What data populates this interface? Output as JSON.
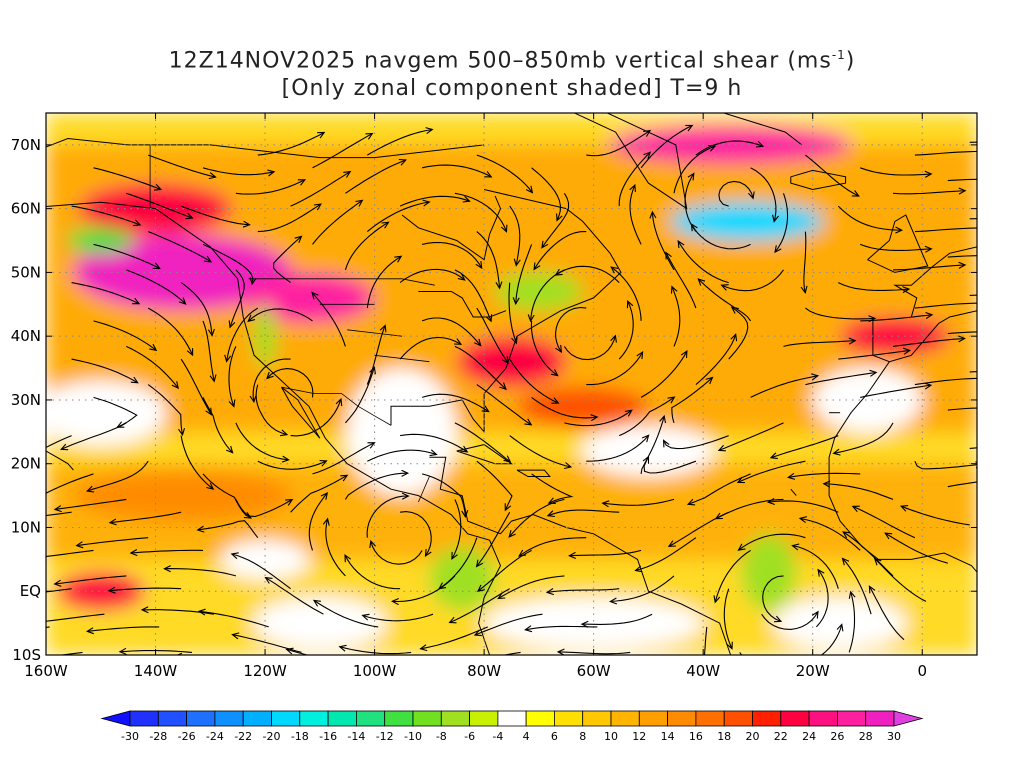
{
  "title": {
    "line1": "12Z14NOV2025 navgem 500–850mb vertical shear (ms",
    "line1_sup": "-1",
    "line1_end": ")",
    "line2": "[Only zonal component shaded] T=9 h"
  },
  "map": {
    "lon_range": [
      -160,
      10
    ],
    "lat_range": [
      -10,
      75
    ],
    "lat_ticks": [
      {
        "value": 70,
        "label": "70N"
      },
      {
        "value": 60,
        "label": "60N"
      },
      {
        "value": 50,
        "label": "50N"
      },
      {
        "value": 40,
        "label": "40N"
      },
      {
        "value": 30,
        "label": "30N"
      },
      {
        "value": 20,
        "label": "20N"
      },
      {
        "value": 10,
        "label": "10N"
      },
      {
        "value": 0,
        "label": "EQ"
      },
      {
        "value": -10,
        "label": "10S"
      }
    ],
    "lon_ticks": [
      {
        "value": -160,
        "label": "160W"
      },
      {
        "value": -140,
        "label": "140W"
      },
      {
        "value": -120,
        "label": "120W"
      },
      {
        "value": -100,
        "label": "100W"
      },
      {
        "value": -80,
        "label": "80W"
      },
      {
        "value": -60,
        "label": "60W"
      },
      {
        "value": -40,
        "label": "40W"
      },
      {
        "value": -20,
        "label": "20W"
      },
      {
        "value": 0,
        "label": "0"
      }
    ],
    "shear_regions": [
      {
        "lon": -135,
        "lat": 50,
        "rx": 20,
        "ry": 6,
        "value": 28
      },
      {
        "lon": -112,
        "lat": 46,
        "rx": 12,
        "ry": 4,
        "value": 26
      },
      {
        "lon": -140,
        "lat": 60,
        "rx": 14,
        "ry": 4,
        "value": 22
      },
      {
        "lon": -75,
        "lat": 36,
        "rx": 10,
        "ry": 4,
        "value": 22
      },
      {
        "lon": -62,
        "lat": 29,
        "rx": 12,
        "ry": 3,
        "value": 18
      },
      {
        "lon": -35,
        "lat": 70,
        "rx": 22,
        "ry": 3,
        "value": 26
      },
      {
        "lon": -32,
        "lat": 58,
        "rx": 14,
        "ry": 3,
        "value": -20
      },
      {
        "lon": -5,
        "lat": 40,
        "rx": 10,
        "ry": 3,
        "value": 22
      },
      {
        "lon": -150,
        "lat": 0,
        "rx": 8,
        "ry": 3,
        "value": 22
      },
      {
        "lon": -135,
        "lat": 15,
        "rx": 20,
        "ry": 4,
        "value": 14
      },
      {
        "lon": -84,
        "lat": 2,
        "rx": 6,
        "ry": 5,
        "value": -8
      },
      {
        "lon": -28,
        "lat": 3,
        "rx": 5,
        "ry": 6,
        "value": -8
      },
      {
        "lon": -70,
        "lat": 47,
        "rx": 8,
        "ry": 3,
        "value": -8
      },
      {
        "lon": -150,
        "lat": 55,
        "rx": 6,
        "ry": 2,
        "value": -12
      },
      {
        "lon": -120,
        "lat": 40,
        "rx": 2,
        "ry": 5,
        "value": -8
      }
    ]
  },
  "colorbar": {
    "levels": [
      -30,
      -28,
      -26,
      -24,
      -22,
      -20,
      -18,
      -16,
      -14,
      -12,
      -10,
      -8,
      -6,
      -4,
      4,
      6,
      8,
      10,
      12,
      14,
      16,
      18,
      20,
      22,
      24,
      26,
      28,
      30
    ],
    "labels": [
      "-30",
      "-28",
      "-26",
      "-24",
      "-22",
      "-20",
      "-18",
      "-16",
      "-14",
      "-12",
      "-10",
      "-8",
      "-6",
      "-4",
      "4",
      "6",
      "8",
      "10",
      "12",
      "14",
      "16",
      "18",
      "20",
      "22",
      "24",
      "26",
      "28",
      "30"
    ],
    "colors": [
      "#1010ff",
      "#2030ff",
      "#2050ff",
      "#2070ff",
      "#1090ff",
      "#00b0ff",
      "#00d8ff",
      "#00f0e0",
      "#00e8b0",
      "#20e080",
      "#40e040",
      "#70e020",
      "#a0e020",
      "#c8f000",
      "#ffffff",
      "#ffff00",
      "#ffe000",
      "#ffc800",
      "#ffb400",
      "#ffa000",
      "#ff8c00",
      "#ff7000",
      "#ff5000",
      "#ff2000",
      "#ff0040",
      "#ff1080",
      "#ff20a0",
      "#f020c0",
      "#e040e0"
    ]
  }
}
